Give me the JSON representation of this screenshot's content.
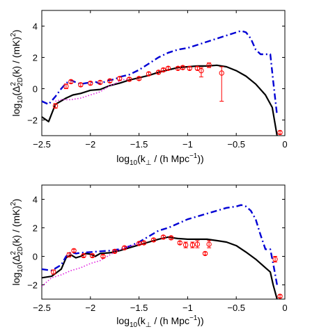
{
  "chart_data": [
    {
      "type": "line",
      "panel": "top",
      "xlabel": "log10(k⊥ / (h Mpc−1))",
      "ylabel": "log10(Δ2D2(k) / (mK)2)",
      "xlabel_parts": {
        "main": "log",
        "sub1": "10",
        "open": "(k",
        "sub2": "⊥",
        "mid": " / (h Mpc",
        "sup": "−1",
        "close": "))"
      },
      "ylabel_parts": {
        "main": "log",
        "sub1": "10",
        "open": "(Δ",
        "sup1": "2",
        "sub2": "2D",
        "mid": "(k) / (mK)",
        "sup2": "2",
        "close": ")"
      },
      "xlim": [
        -2.5,
        0
      ],
      "ylim": [
        -3,
        5
      ],
      "xticks": [
        -2.5,
        -2,
        -1.5,
        -1,
        -0.5,
        0
      ],
      "xticklabels": [
        "−2.5",
        "−2",
        "−1.5",
        "−1",
        "−0.5",
        "0"
      ],
      "yticks": [
        -2,
        0,
        2,
        4
      ],
      "yticklabels": [
        "−2",
        "0",
        "2",
        "4"
      ],
      "series": [
        {
          "style": "solid",
          "color": "#000000",
          "x": [
            -2.5,
            -2.43,
            -2.36,
            -2.25,
            -2.18,
            -2.1,
            -2.0,
            -1.9,
            -1.8,
            -1.7,
            -1.6,
            -1.5,
            -1.4,
            -1.3,
            -1.2,
            -1.1,
            -1.0,
            -0.9,
            -0.8,
            -0.7,
            -0.6,
            -0.5,
            -0.4,
            -0.3,
            -0.2,
            -0.13,
            -0.08
          ],
          "y": [
            -1.8,
            -2.1,
            -1.0,
            -0.6,
            -0.4,
            -0.3,
            -0.1,
            -0.05,
            0.2,
            0.35,
            0.55,
            0.7,
            0.85,
            1.05,
            1.2,
            1.35,
            1.4,
            1.45,
            1.45,
            1.5,
            1.4,
            1.15,
            0.8,
            0.3,
            -0.4,
            -1.2,
            -3.0
          ]
        },
        {
          "style": "dashdot",
          "color": "#0000d4",
          "x": [
            -2.5,
            -2.43,
            -2.36,
            -2.3,
            -2.25,
            -2.2,
            -2.15,
            -2.1,
            -2.05,
            -2.0,
            -1.95,
            -1.9,
            -1.85,
            -1.8,
            -1.75,
            -1.7,
            -1.6,
            -1.5,
            -1.4,
            -1.3,
            -1.2,
            -1.1,
            -1.0,
            -0.9,
            -0.8,
            -0.7,
            -0.6,
            -0.5,
            -0.45,
            -0.4,
            -0.35,
            -0.3,
            -0.25,
            -0.2,
            -0.15,
            -0.12,
            -0.08
          ],
          "y": [
            -0.8,
            -1.0,
            -0.5,
            0.0,
            0.35,
            0.55,
            0.4,
            0.3,
            0.35,
            0.4,
            0.45,
            0.3,
            0.45,
            0.55,
            0.6,
            0.75,
            0.9,
            1.2,
            1.6,
            2.0,
            2.3,
            2.5,
            2.6,
            2.8,
            3.0,
            3.2,
            3.4,
            3.6,
            3.7,
            3.6,
            3.2,
            2.5,
            2.2,
            2.2,
            2.2,
            0.5,
            -1.7
          ]
        },
        {
          "style": "dotted",
          "color": "#e020e0",
          "x": [
            -2.36,
            -2.3,
            -2.2,
            -2.1,
            -2.0,
            -1.9,
            -1.8,
            -1.75,
            -1.7,
            -1.65,
            -1.6
          ],
          "y": [
            -0.8,
            -0.7,
            -0.7,
            -0.6,
            -0.4,
            -0.2,
            0.2,
            0.3,
            0.5,
            0.6,
            0.6
          ]
        }
      ],
      "points": {
        "color": "#ff0000",
        "x": [
          -2.36,
          -2.25,
          -2.2,
          -2.1,
          -2.0,
          -1.9,
          -1.8,
          -1.7,
          -1.6,
          -1.5,
          -1.4,
          -1.3,
          -1.25,
          -1.2,
          -1.1,
          -1.05,
          -0.98,
          -0.9,
          -0.86,
          -0.78,
          -0.65,
          -0.05
        ],
        "y": [
          -1.1,
          0.15,
          0.45,
          0.25,
          0.35,
          0.4,
          0.5,
          0.65,
          0.6,
          0.65,
          0.95,
          1.05,
          1.2,
          1.3,
          1.3,
          1.35,
          1.3,
          1.3,
          1.15,
          1.5,
          1.0,
          -2.8
        ],
        "err_lo": [
          0.15,
          0.15,
          0.1,
          0.1,
          0.1,
          0.1,
          0.1,
          0.1,
          0.1,
          0.1,
          0.1,
          0.1,
          0.1,
          0.1,
          0.1,
          0.1,
          0.1,
          0.1,
          0.4,
          0.15,
          1.8,
          0.1
        ],
        "err_hi": [
          0.15,
          0.15,
          0.1,
          0.1,
          0.1,
          0.1,
          0.1,
          0.1,
          0.1,
          0.1,
          0.1,
          0.1,
          0.1,
          0.1,
          0.1,
          0.1,
          0.1,
          0.1,
          0.2,
          0.15,
          0.4,
          0.1
        ]
      }
    },
    {
      "type": "line",
      "panel": "bottom",
      "xlabel": "log10(k⊥ / (h Mpc−1))",
      "ylabel": "log10(Δ2D2(k) / (mK)2)",
      "xlabel_parts": {
        "main": "log",
        "sub1": "10",
        "open": "(k",
        "sub2": "⊥",
        "mid": " / (h Mpc",
        "sup": "−1",
        "close": "))"
      },
      "ylabel_parts": {
        "main": "log",
        "sub1": "10",
        "open": "(Δ",
        "sup1": "2",
        "sub2": "2D",
        "mid": "(k) / (mK)",
        "sup2": "2",
        "close": ")"
      },
      "xlim": [
        -2.5,
        0
      ],
      "ylim": [
        -3,
        5
      ],
      "xticks": [
        -2.5,
        -2,
        -1.5,
        -1,
        -0.5,
        0
      ],
      "xticklabels": [
        "−2.5",
        "−2",
        "−1.5",
        "−1",
        "−0.5",
        "0"
      ],
      "yticks": [
        -2,
        0,
        2,
        4
      ],
      "yticklabels": [
        "−2",
        "0",
        "2",
        "4"
      ],
      "series": [
        {
          "style": "solid",
          "color": "#000000",
          "x": [
            -2.5,
            -2.4,
            -2.3,
            -2.25,
            -2.2,
            -2.15,
            -2.1,
            -2.05,
            -2.0,
            -1.95,
            -1.9,
            -1.8,
            -1.7,
            -1.6,
            -1.5,
            -1.4,
            -1.3,
            -1.2,
            -1.1,
            -1.0,
            -0.9,
            -0.8,
            -0.7,
            -0.6,
            -0.5,
            -0.4,
            -0.3,
            -0.2,
            -0.15,
            -0.12,
            -0.08
          ],
          "y": [
            -1.5,
            -1.4,
            -0.9,
            -0.1,
            0.1,
            -0.1,
            0.0,
            0.2,
            0.15,
            0.0,
            0.2,
            0.25,
            0.4,
            0.6,
            0.8,
            1.0,
            1.2,
            1.35,
            1.25,
            1.2,
            1.2,
            1.2,
            1.1,
            1.0,
            0.75,
            0.3,
            -0.2,
            -0.8,
            -1.1,
            -2.0,
            -3.0
          ]
        },
        {
          "style": "dashdot",
          "color": "#0000d4",
          "x": [
            -2.5,
            -2.4,
            -2.3,
            -2.25,
            -2.2,
            -2.15,
            -2.1,
            -2.0,
            -1.9,
            -1.8,
            -1.7,
            -1.6,
            -1.5,
            -1.4,
            -1.3,
            -1.2,
            -1.1,
            -1.0,
            -0.9,
            -0.8,
            -0.7,
            -0.6,
            -0.5,
            -0.45,
            -0.4,
            -0.35,
            -0.3,
            -0.25,
            -0.2,
            -0.15,
            -0.12,
            -0.08
          ],
          "y": [
            -0.9,
            -1.0,
            -0.6,
            0.0,
            0.3,
            0.2,
            0.25,
            0.3,
            0.35,
            0.4,
            0.5,
            0.7,
            1.0,
            1.4,
            1.8,
            2.0,
            2.3,
            2.6,
            2.8,
            3.0,
            3.2,
            3.4,
            3.5,
            3.6,
            3.5,
            3.2,
            2.6,
            1.5,
            0.5,
            0.5,
            -0.5,
            -2.0
          ]
        },
        {
          "style": "dotted",
          "color": "#e020e0",
          "x": [
            -2.5,
            -2.4,
            -2.3,
            -2.2,
            -2.1,
            -2.0,
            -1.9,
            -1.8,
            -1.75,
            -1.7,
            -1.65,
            -1.6,
            -1.55,
            -1.5
          ],
          "y": [
            -2.1,
            -1.5,
            -1.3,
            -1.0,
            -0.8,
            -0.5,
            -0.3,
            0.1,
            0.3,
            0.45,
            0.6,
            0.7,
            0.8,
            0.9
          ]
        }
      ],
      "points": {
        "color": "#ff0000",
        "x": [
          -2.38,
          -2.22,
          -2.17,
          -2.07,
          -1.98,
          -1.87,
          -1.75,
          -1.65,
          -1.5,
          -1.45,
          -1.35,
          -1.25,
          -1.17,
          -1.08,
          -1.02,
          -0.95,
          -0.9,
          -0.82,
          -0.78,
          -0.1,
          -0.05
        ],
        "y": [
          -1.1,
          0.1,
          0.4,
          0.05,
          0.05,
          0.0,
          0.35,
          0.6,
          0.9,
          0.95,
          1.15,
          1.35,
          1.3,
          0.95,
          0.8,
          0.8,
          0.85,
          0.2,
          0.85,
          -0.2,
          -2.8
        ],
        "err_lo": [
          0.15,
          0.15,
          0.1,
          0.1,
          0.1,
          0.1,
          0.1,
          0.1,
          0.1,
          0.1,
          0.1,
          0.1,
          0.1,
          0.1,
          0.2,
          0.2,
          0.25,
          0.1,
          0.25,
          0.2,
          0.1
        ],
        "err_hi": [
          0.15,
          0.15,
          0.1,
          0.1,
          0.1,
          0.1,
          0.1,
          0.1,
          0.1,
          0.1,
          0.1,
          0.1,
          0.1,
          0.1,
          0.2,
          0.2,
          0.25,
          0.1,
          0.25,
          0.2,
          0.1
        ]
      }
    }
  ]
}
